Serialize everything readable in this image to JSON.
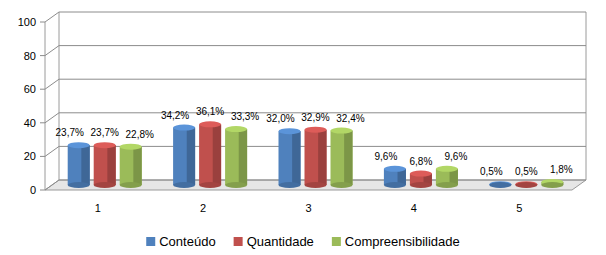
{
  "chart_data": {
    "type": "bar",
    "categories": [
      "1",
      "2",
      "3",
      "4",
      "5"
    ],
    "series": [
      {
        "name": "Conteúdo",
        "color": "#4f81bd",
        "values": [
          23.7,
          34.2,
          32.0,
          9.6,
          0.5
        ],
        "value_labels": [
          "23,7%",
          "34,2%",
          "32,0%",
          "9,6%",
          "0,5%"
        ]
      },
      {
        "name": "Quantidade",
        "color": "#c0504d",
        "values": [
          23.7,
          36.1,
          32.9,
          6.8,
          0.5
        ],
        "value_labels": [
          "23,7%",
          "36,1%",
          "32,9%",
          "6,8%",
          "0,5%"
        ]
      },
      {
        "name": "Compreensibilidade",
        "color": "#9bbb59",
        "values": [
          22.8,
          33.3,
          32.4,
          9.6,
          1.8
        ],
        "value_labels": [
          "22,8%",
          "33,3%",
          "32,4%",
          "9,6%",
          "1,8%"
        ]
      }
    ],
    "ylim": [
      0,
      100
    ],
    "yticks": [
      0,
      20,
      40,
      60,
      80,
      100
    ],
    "grid": true,
    "legend": "bottom",
    "data_labels": true
  }
}
